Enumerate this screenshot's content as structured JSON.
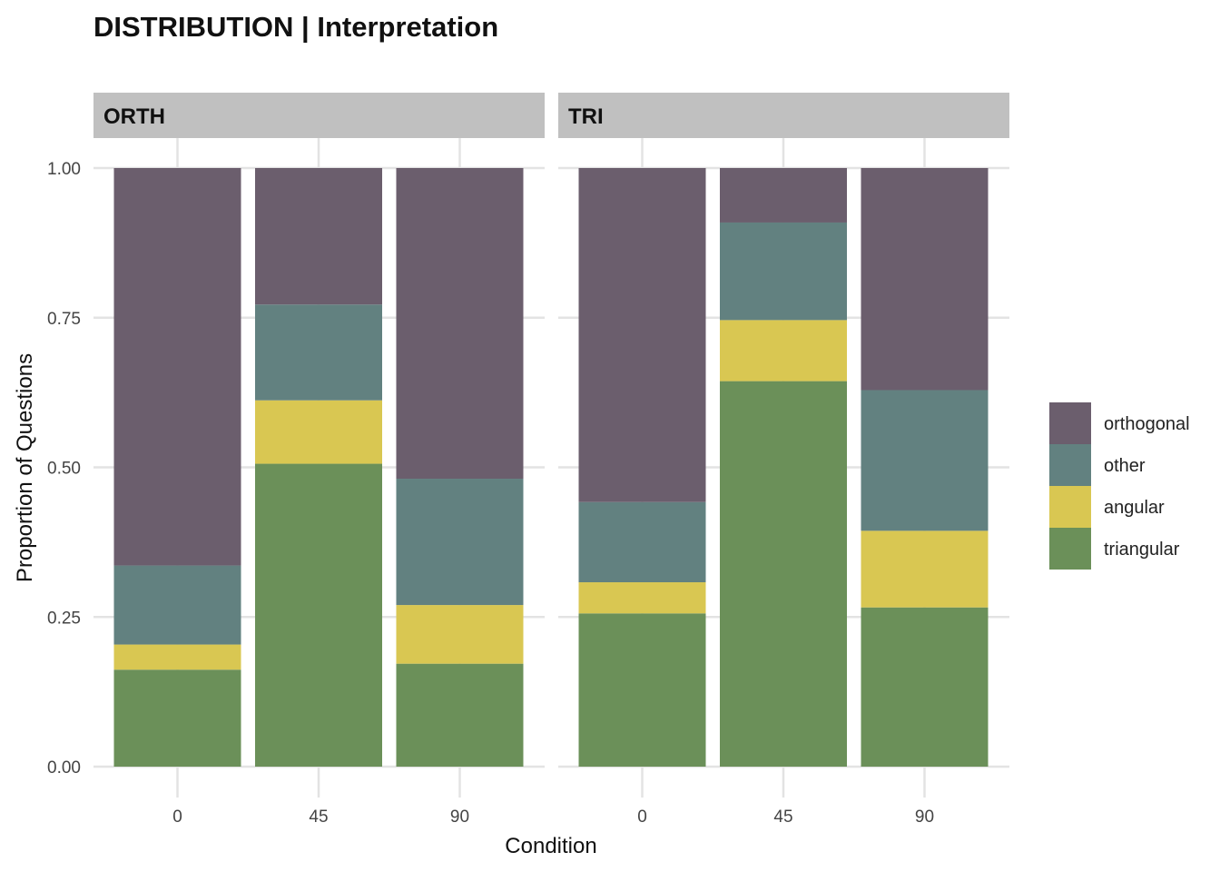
{
  "chart_data": {
    "type": "bar",
    "stacked": true,
    "title": "DISTRIBUTION | Interpretation",
    "xlabel": "Condition",
    "ylabel": "Proportion of Questions",
    "ylim": [
      0,
      1
    ],
    "yticks": [
      "0.00",
      "0.25",
      "0.50",
      "0.75",
      "1.00"
    ],
    "grid": true,
    "legend_position": "right",
    "categories": [
      "0",
      "45",
      "90"
    ],
    "stack_order": [
      "triangular",
      "angular",
      "other",
      "orthogonal"
    ],
    "legend_order": [
      "orthogonal",
      "other",
      "angular",
      "triangular"
    ],
    "colors": {
      "orthogonal": "#6b5e6d",
      "other": "#628180",
      "angular": "#d9c752",
      "triangular": "#6b9059"
    },
    "panels": [
      {
        "label": "ORTH",
        "series": [
          {
            "name": "triangular",
            "values": [
              0.162,
              0.506,
              0.172
            ]
          },
          {
            "name": "angular",
            "values": [
              0.042,
              0.106,
              0.098
            ]
          },
          {
            "name": "other",
            "values": [
              0.132,
              0.16,
              0.211
            ]
          },
          {
            "name": "orthogonal",
            "values": [
              0.664,
              0.228,
              0.519
            ]
          }
        ]
      },
      {
        "label": "TRI",
        "series": [
          {
            "name": "triangular",
            "values": [
              0.256,
              0.644,
              0.266
            ]
          },
          {
            "name": "angular",
            "values": [
              0.052,
              0.102,
              0.128
            ]
          },
          {
            "name": "other",
            "values": [
              0.134,
              0.163,
              0.235
            ]
          },
          {
            "name": "orthogonal",
            "values": [
              0.558,
              0.091,
              0.371
            ]
          }
        ]
      }
    ]
  }
}
